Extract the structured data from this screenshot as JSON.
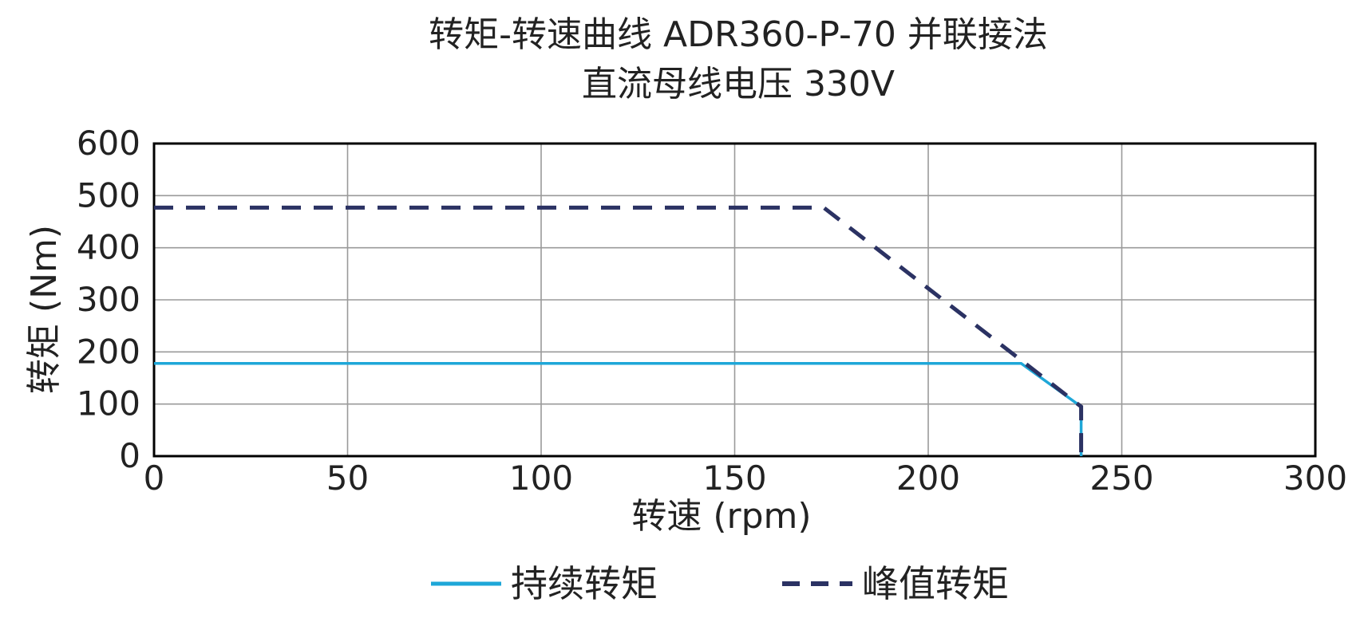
{
  "chart_data": {
    "type": "line",
    "title": "转矩-转速曲线 ADR360-P-70 并联接法",
    "subtitle": "直流母线电压 330V",
    "xlabel": "转速 (rpm)",
    "ylabel": "转矩 (Nm)",
    "xlim": [
      0,
      300
    ],
    "ylim": [
      0,
      600
    ],
    "x_ticks": [
      "0",
      "50",
      "100",
      "150",
      "200",
      "250",
      "300"
    ],
    "y_ticks": [
      "0",
      "100",
      "200",
      "300",
      "400",
      "500",
      "600"
    ],
    "grid": true,
    "legend_position": "bottom",
    "series": [
      {
        "name": "持续转矩",
        "color": "#1ea7d8",
        "style": "solid",
        "points": [
          {
            "x": 0,
            "y": 178
          },
          {
            "x": 224,
            "y": 178
          },
          {
            "x": 239.5,
            "y": 95
          },
          {
            "x": 239.5,
            "y": 0
          }
        ]
      },
      {
        "name": "峰值转矩",
        "color": "#2b3263",
        "style": "dashed",
        "points": [
          {
            "x": 0,
            "y": 477
          },
          {
            "x": 173,
            "y": 477
          },
          {
            "x": 239.5,
            "y": 95
          },
          {
            "x": 239.5,
            "y": 0
          }
        ]
      }
    ]
  }
}
